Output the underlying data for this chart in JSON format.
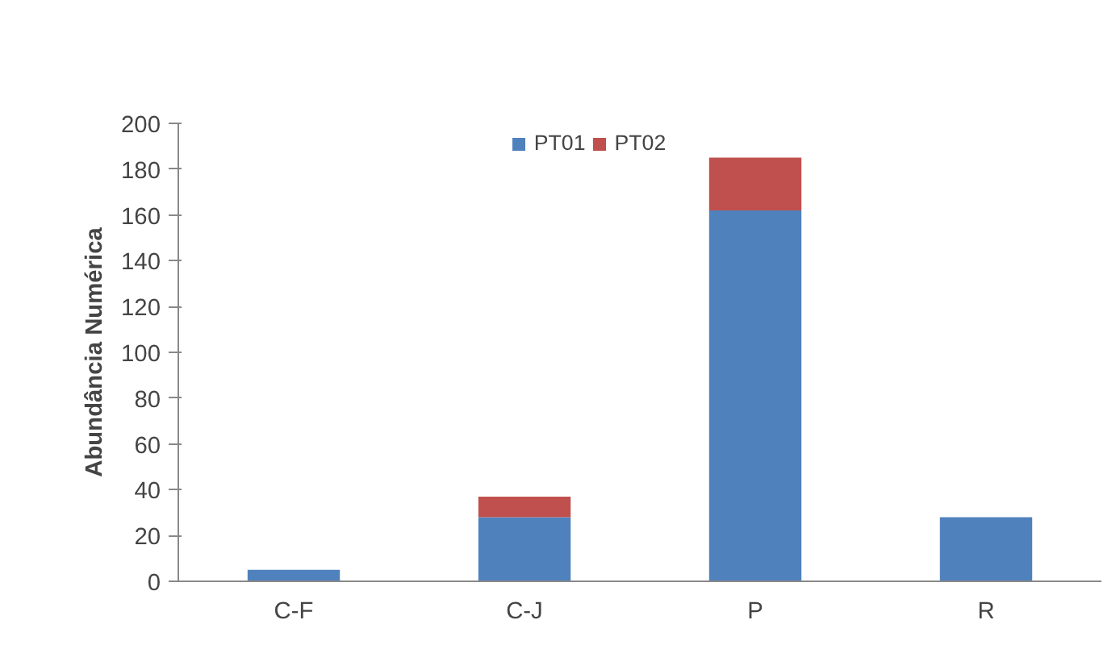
{
  "chart_data": {
    "type": "bar",
    "ylabel": "Abundância Numérica",
    "categories": [
      "C-F",
      "C-J",
      "P",
      "R"
    ],
    "stacked": true,
    "series": [
      {
        "name": "PT01",
        "color": "#4f81bd",
        "values": [
          5,
          28,
          162,
          28
        ]
      },
      {
        "name": "PT02",
        "color": "#c0504d",
        "values": [
          0,
          9,
          23,
          0
        ]
      }
    ],
    "ylim": [
      0,
      200
    ],
    "yticks": [
      0,
      20,
      40,
      60,
      80,
      100,
      120,
      140,
      160,
      180,
      200
    ],
    "grid": false,
    "legend": "top"
  }
}
